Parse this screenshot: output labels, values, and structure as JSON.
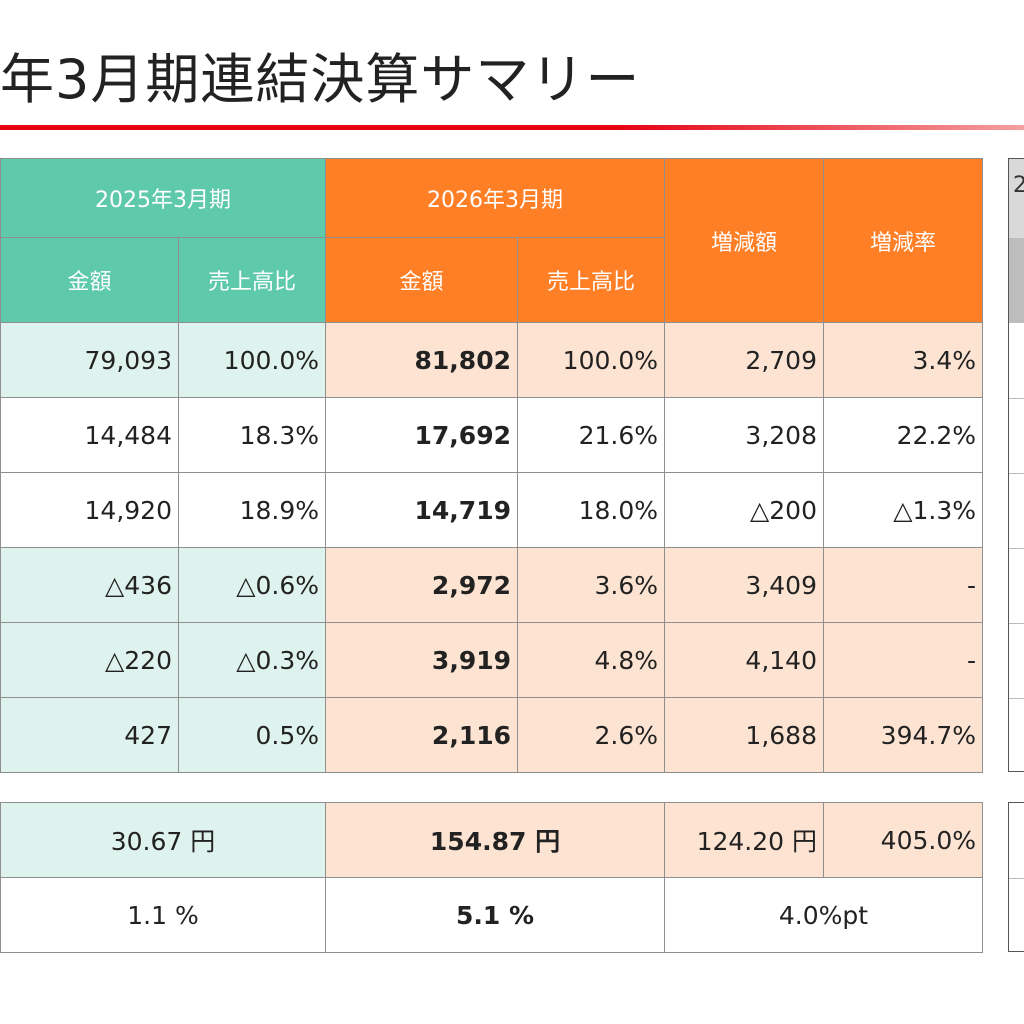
{
  "page": {
    "title": "年3月期連結決算サマリー"
  },
  "table": {
    "header": {
      "period_prev": "2025年3月期",
      "period_curr": "2026年3月期",
      "change_amount": "増減額",
      "change_rate": "増減率",
      "sub_amount_prev": "金額",
      "sub_ratio_prev": "売上高比",
      "sub_amount_curr": "金額",
      "sub_ratio_curr": "売上高比"
    },
    "rows": [
      {
        "prev_amount": "79,093",
        "prev_ratio": "100.0%",
        "curr_amount": "81,802",
        "curr_ratio": "100.0%",
        "change_amount": "2,709",
        "change_rate": "3.4%"
      },
      {
        "prev_amount": "14,484",
        "prev_ratio": "18.3%",
        "curr_amount": "17,692",
        "curr_ratio": "21.6%",
        "change_amount": "3,208",
        "change_rate": "22.2%"
      },
      {
        "prev_amount": "14,920",
        "prev_ratio": "18.9%",
        "curr_amount": "14,719",
        "curr_ratio": "18.0%",
        "change_amount": "△200",
        "change_rate": "△1.3%"
      },
      {
        "prev_amount": "△436",
        "prev_ratio": "△0.6%",
        "curr_amount": "2,972",
        "curr_ratio": "3.6%",
        "change_amount": "3,409",
        "change_rate": "-"
      },
      {
        "prev_amount": "△220",
        "prev_ratio": "△0.3%",
        "curr_amount": "3,919",
        "curr_ratio": "4.8%",
        "change_amount": "4,140",
        "change_rate": "-"
      },
      {
        "prev_amount": "427",
        "prev_ratio": "0.5%",
        "curr_amount": "2,116",
        "curr_ratio": "2.6%",
        "change_amount": "1,688",
        "change_rate": "394.7%"
      }
    ]
  },
  "per_share": {
    "eps_prev": "30.67 円",
    "eps_curr": "154.87 円",
    "eps_change": "124.20 円",
    "eps_rate": "405.0%",
    "roe_prev": "1.1 %",
    "roe_curr": "5.1 %",
    "roe_change": "4.0%pt"
  },
  "side_table": {
    "header_fragment": "2"
  },
  "colors": {
    "accent_red": "#e60012",
    "header_teal": "#5ec9ab",
    "header_orange": "#ff7f27",
    "cell_teal": "#dff3ee",
    "cell_peach": "#fde3d1"
  }
}
